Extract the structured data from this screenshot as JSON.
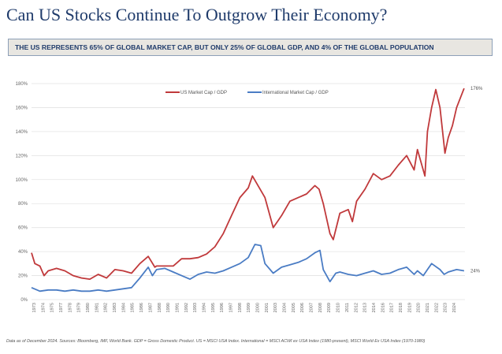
{
  "title": "Can US Stocks Continue To Outgrow Their Economy?",
  "banner": "THE US REPRESENTS 65% OF GLOBAL MARKET CAP, BUT ONLY 25% OF GLOBAL GDP, AND 4% OF THE GLOBAL POPULATION",
  "note": "Data as of December 2024. Sources: Bloomberg, IMF, World Bank.  GDP = Gross Domestic Product. US = MSCI USA Index.  International = MSCI ACWI ex USA Index (1980-present), MSCI World Ex USA Index (1970-1980)",
  "chart_data": {
    "type": "line",
    "xlim": [
      1973,
      2025
    ],
    "ylim": [
      0,
      180
    ],
    "yticks": [
      0,
      20,
      40,
      60,
      80,
      100,
      120,
      140,
      160,
      180
    ],
    "ytick_labels": [
      "0%",
      "20%",
      "40%",
      "60%",
      "80%",
      "100%",
      "120%",
      "140%",
      "160%",
      "180%"
    ],
    "xtick_labels": [
      "1973",
      "1974",
      "1975",
      "1977",
      "1978",
      "1979",
      "1980",
      "1981",
      "1982",
      "1983",
      "1984",
      "1985",
      "1986",
      "1987",
      "1988",
      "1990",
      "1991",
      "1992",
      "1993",
      "1994",
      "1995",
      "1996",
      "1997",
      "1998",
      "1999",
      "2000",
      "2001",
      "2003",
      "2004",
      "2005",
      "2006",
      "2007",
      "2008",
      "2009",
      "2010",
      "2011",
      "2012",
      "2013",
      "2014",
      "2016",
      "2017",
      "2018",
      "2019",
      "2020",
      "2021",
      "2022",
      "2023",
      "2024"
    ],
    "grid": "horizontal",
    "legend": "top-center",
    "end_labels": [
      "176%",
      "24%"
    ],
    "series": [
      {
        "name": "US Market Cap / GDP",
        "color": "#c0393b",
        "x": [
          1973,
          1973.4,
          1974,
          1974.5,
          1975,
          1976,
          1977,
          1978,
          1979,
          1980,
          1981,
          1982,
          1983,
          1984,
          1985,
          1986,
          1987,
          1987.8,
          1988,
          1990,
          1991,
          1992,
          1993,
          1994,
          1995,
          1996,
          1997,
          1998,
          1999,
          1999.5,
          2000,
          2001,
          2002,
          2002.5,
          2003,
          2004,
          2005,
          2006,
          2007,
          2007.5,
          2008,
          2008.8,
          2009.2,
          2010,
          2011,
          2011.5,
          2012,
          2013,
          2014,
          2015,
          2016,
          2017,
          2018,
          2018.9,
          2019.3,
          2020.2,
          2020.5,
          2021,
          2021.5,
          2022,
          2022.6,
          2023,
          2023.5,
          2024,
          2024.9
        ],
        "values": [
          39,
          30,
          28,
          20,
          24,
          26,
          24,
          20,
          18,
          17,
          21,
          18,
          25,
          24,
          22,
          30,
          36,
          27,
          28,
          28,
          34,
          34,
          35,
          38,
          44,
          55,
          70,
          85,
          93,
          103,
          97,
          85,
          60,
          65,
          70,
          82,
          85,
          88,
          95,
          92,
          80,
          55,
          50,
          72,
          75,
          65,
          82,
          92,
          105,
          100,
          103,
          112,
          120,
          108,
          125,
          103,
          140,
          160,
          175,
          160,
          122,
          135,
          145,
          160,
          176
        ]
      },
      {
        "name": "International Market Cap / GDP",
        "color": "#4a7cc4",
        "x": [
          1973,
          1974,
          1975,
          1976,
          1977,
          1978,
          1979,
          1980,
          1981,
          1982,
          1983,
          1984,
          1985,
          1986,
          1987,
          1987.5,
          1988,
          1989,
          1990,
          1991,
          1992,
          1993,
          1994,
          1995,
          1996,
          1997,
          1998,
          1999,
          1999.8,
          2000.5,
          2001,
          2002,
          2003,
          2004,
          2005,
          2006,
          2007,
          2007.6,
          2008,
          2008.8,
          2009.5,
          2010,
          2011,
          2012,
          2013,
          2014,
          2015,
          2016,
          2017,
          2018,
          2018.9,
          2019.3,
          2020,
          2020.5,
          2021,
          2022,
          2022.5,
          2023,
          2024,
          2024.9
        ],
        "values": [
          10,
          7,
          8,
          8,
          7,
          8,
          7,
          7,
          8,
          7,
          8,
          9,
          10,
          18,
          27,
          20,
          25,
          26,
          23,
          20,
          17,
          21,
          23,
          22,
          24,
          27,
          30,
          35,
          46,
          45,
          30,
          22,
          27,
          29,
          31,
          34,
          39,
          41,
          25,
          15,
          22,
          23,
          21,
          20,
          22,
          24,
          21,
          22,
          25,
          27,
          21,
          24,
          20,
          25,
          30,
          25,
          21,
          23,
          25,
          24
        ]
      }
    ]
  }
}
